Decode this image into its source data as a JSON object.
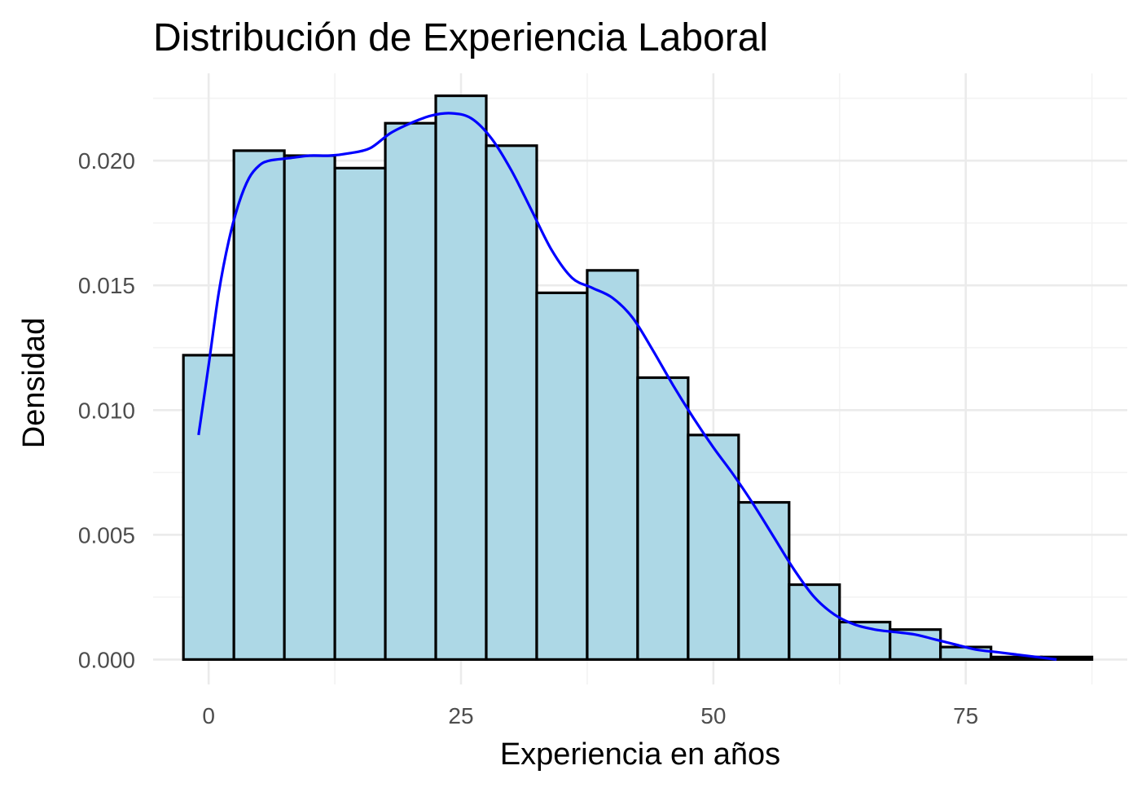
{
  "chart_data": {
    "type": "bar",
    "title": "Distribución de Experiencia Laboral",
    "xlabel": "Experiencia en años",
    "ylabel": "Densidad",
    "xlim": [
      -5.5,
      91
    ],
    "ylim": [
      -0.001,
      0.0235
    ],
    "x_ticks": [
      0,
      25,
      50,
      75
    ],
    "x_tick_labels": [
      "0",
      "25",
      "50",
      "75"
    ],
    "y_ticks": [
      0,
      0.005,
      0.01,
      0.015,
      0.02
    ],
    "y_tick_labels": [
      "0.000",
      "0.005",
      "0.010",
      "0.015",
      "0.020"
    ],
    "grid": true,
    "bin_width": 5,
    "bins": [
      {
        "start": -2.5,
        "end": 2.5,
        "density": 0.0122
      },
      {
        "start": 2.5,
        "end": 7.5,
        "density": 0.0204
      },
      {
        "start": 7.5,
        "end": 12.5,
        "density": 0.0202
      },
      {
        "start": 12.5,
        "end": 17.5,
        "density": 0.0197
      },
      {
        "start": 17.5,
        "end": 22.5,
        "density": 0.0215
      },
      {
        "start": 22.5,
        "end": 27.5,
        "density": 0.0226
      },
      {
        "start": 27.5,
        "end": 32.5,
        "density": 0.0206
      },
      {
        "start": 32.5,
        "end": 37.5,
        "density": 0.0147
      },
      {
        "start": 37.5,
        "end": 42.5,
        "density": 0.0156
      },
      {
        "start": 42.5,
        "end": 47.5,
        "density": 0.0113
      },
      {
        "start": 47.5,
        "end": 52.5,
        "density": 0.009
      },
      {
        "start": 52.5,
        "end": 57.5,
        "density": 0.0063
      },
      {
        "start": 57.5,
        "end": 62.5,
        "density": 0.003
      },
      {
        "start": 62.5,
        "end": 67.5,
        "density": 0.0015
      },
      {
        "start": 67.5,
        "end": 72.5,
        "density": 0.0012
      },
      {
        "start": 72.5,
        "end": 77.5,
        "density": 0.0005
      },
      {
        "start": 77.5,
        "end": 82.5,
        "density": 0.0001
      },
      {
        "start": 82.5,
        "end": 87.5,
        "density": 0.0001
      }
    ],
    "density_curve": {
      "x": [
        -1,
        0,
        1,
        2,
        3,
        4,
        5,
        6,
        8,
        10,
        12,
        14,
        16,
        18,
        20,
        22,
        24,
        26,
        28,
        30,
        32,
        34,
        36,
        38,
        40,
        42,
        44,
        46,
        48,
        50,
        52,
        54,
        56,
        58,
        60,
        62,
        64,
        66,
        68,
        70,
        72,
        74,
        76,
        78,
        80,
        82,
        84
      ],
      "y": [
        0.009,
        0.0118,
        0.0147,
        0.0168,
        0.0183,
        0.0193,
        0.0198,
        0.02,
        0.0201,
        0.0202,
        0.0202,
        0.0203,
        0.0205,
        0.0211,
        0.0215,
        0.0218,
        0.0219,
        0.0217,
        0.0209,
        0.0196,
        0.018,
        0.0164,
        0.0153,
        0.0149,
        0.0145,
        0.0137,
        0.0124,
        0.011,
        0.0097,
        0.0085,
        0.0074,
        0.0062,
        0.0049,
        0.0036,
        0.0025,
        0.0018,
        0.0014,
        0.0012,
        0.0011,
        0.001,
        0.0008,
        0.0006,
        0.0004,
        0.0003,
        0.0002,
        0.0001,
        0.0
      ]
    },
    "colors": {
      "bar_fill": "#ADD8E6",
      "bar_stroke": "#000000",
      "curve": "#0000FF",
      "grid_major": "#EBEBEB",
      "grid_minor": "#F3F3F3",
      "tick_text": "#4D4D4D"
    }
  }
}
